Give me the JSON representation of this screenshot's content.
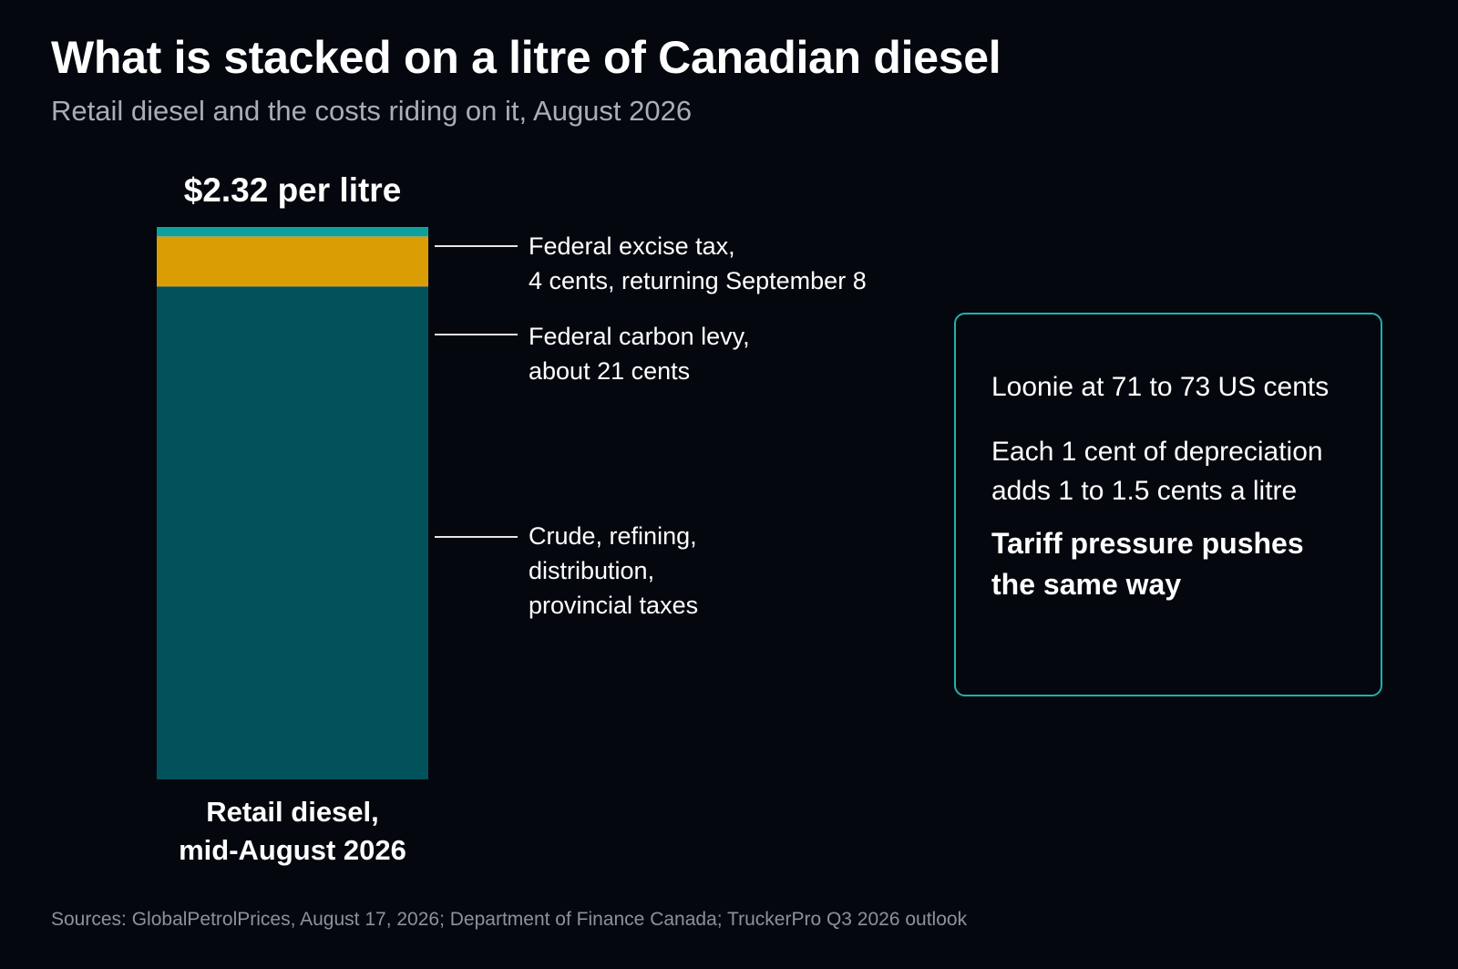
{
  "title": "What is stacked on a litre of Canadian diesel",
  "subtitle": "Retail diesel and the costs riding on it, August 2026",
  "chart_data": {
    "type": "bar",
    "stacked": true,
    "title": "What is stacked on a litre of Canadian diesel",
    "subtitle": "Retail diesel and the costs riding on it, August 2026",
    "unit": "cents per litre",
    "categories": [
      "Retail diesel,\nmid-August 2026"
    ],
    "total_label": "$2.32 per litre",
    "total_value": 232,
    "ylim": [
      0,
      232
    ],
    "grid": false,
    "series": [
      {
        "name": "Crude, refining,\ndistribution,\nprovincial taxes",
        "values": [
          207
        ],
        "color": "#02525b"
      },
      {
        "name": "Federal carbon levy,\nabout 21 cents",
        "values": [
          21
        ],
        "color": "#db9d04"
      },
      {
        "name": "Federal excise tax,\n4 cents, returning September 8",
        "values": [
          4
        ],
        "color": "#0da19d"
      }
    ]
  },
  "callout": {
    "line1": "Loonie at 71 to 73 US cents",
    "line2": "Each 1 cent of depreciation\nadds 1 to 1.5 cents a litre",
    "line3": "Tariff pressure pushes\nthe same way"
  },
  "sources": "Sources: GlobalPetrolPrices, August 17, 2026; Department of Finance Canada; TruckerPro Q3 2026 outlook"
}
